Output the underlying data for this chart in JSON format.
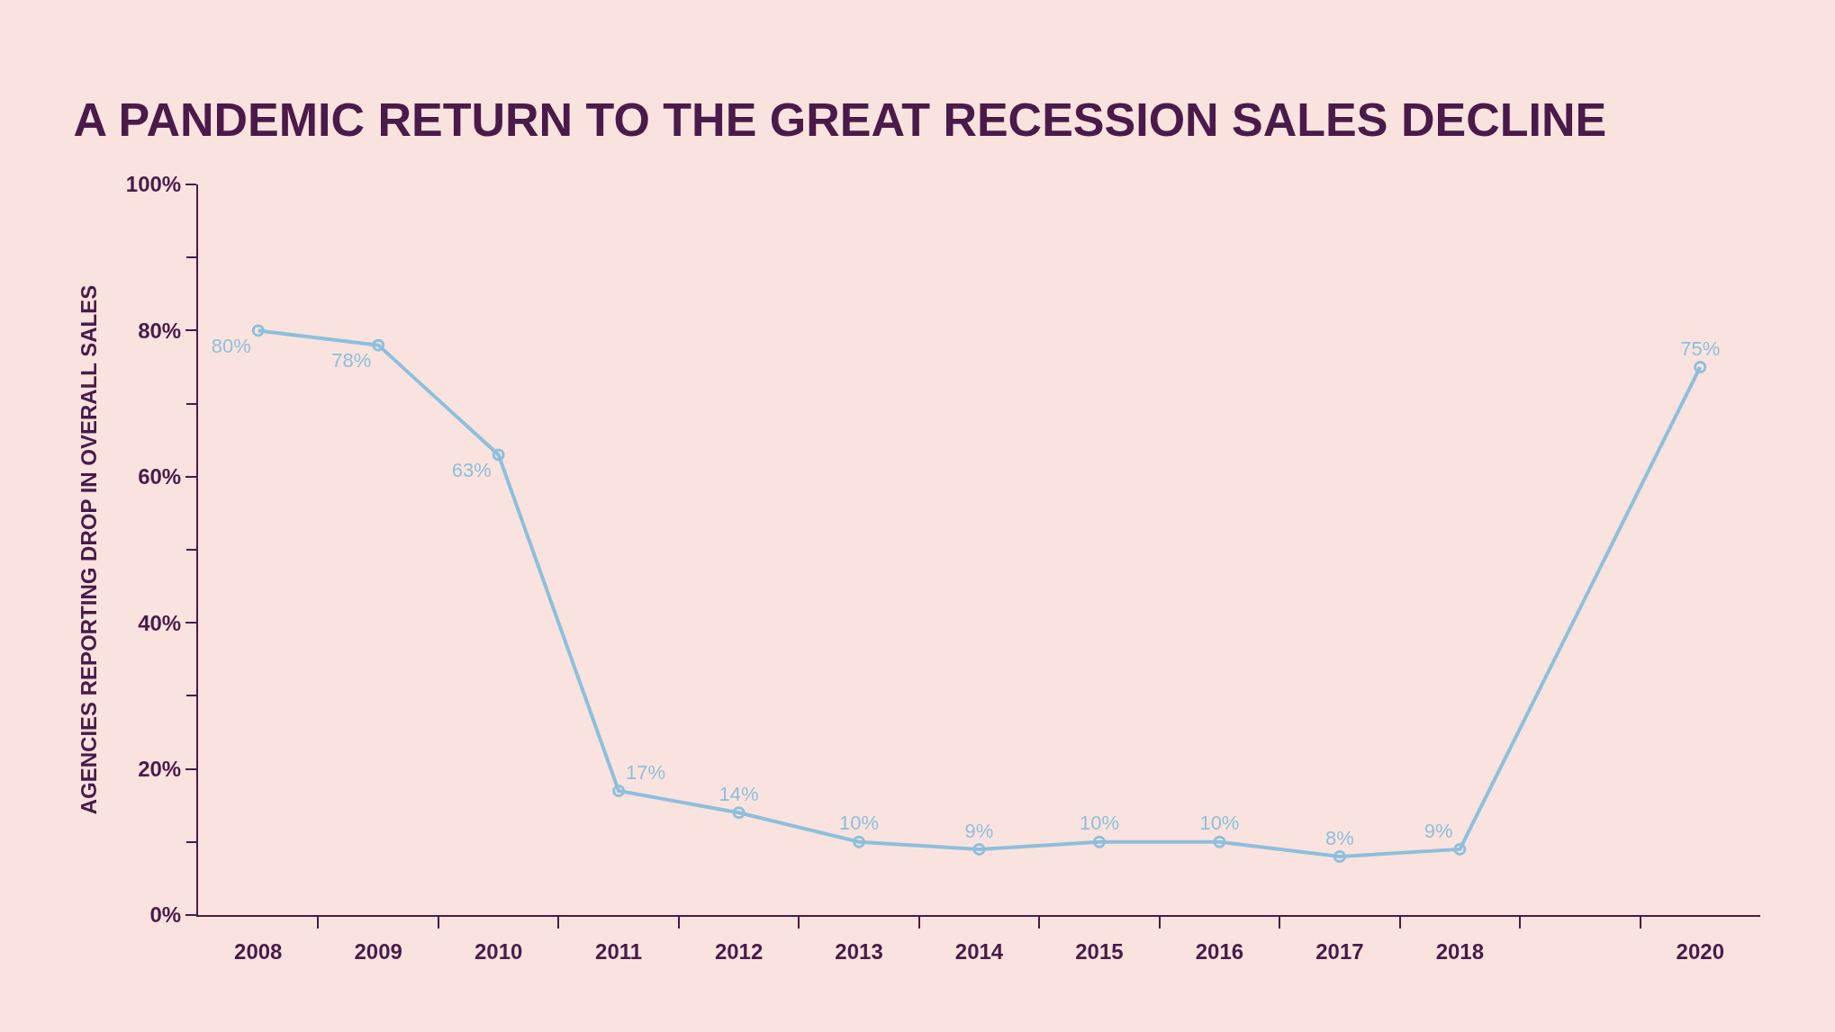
{
  "chart_data": {
    "type": "line",
    "title": "A PANDEMIC RETURN TO THE GREAT RECESSION SALES DECLINE",
    "ylabel": "AGENCIES REPORTING DROP IN OVERALL SALES",
    "x": [
      2008,
      2009,
      2010,
      2011,
      2012,
      2013,
      2014,
      2015,
      2016,
      2017,
      2018,
      2020
    ],
    "values": [
      80,
      78,
      63,
      17,
      14,
      10,
      9,
      10,
      10,
      8,
      9,
      75
    ],
    "value_labels": [
      "80%",
      "78%",
      "63%",
      "17%",
      "14%",
      "10%",
      "9%",
      "10%",
      "10%",
      "8%",
      "9%",
      "75%"
    ],
    "color": "#8dbfdc",
    "marker": "circle",
    "line_style": "solid",
    "xlim": [
      2007.5,
      2020.5
    ],
    "xticks": [
      {
        "value": 2008,
        "label": "2008"
      },
      {
        "value": 2009,
        "label": "2009"
      },
      {
        "value": 2010,
        "label": "2010"
      },
      {
        "value": 2011,
        "label": "2011"
      },
      {
        "value": 2012,
        "label": "2012"
      },
      {
        "value": 2013,
        "label": "2013"
      },
      {
        "value": 2014,
        "label": "2014"
      },
      {
        "value": 2015,
        "label": "2015"
      },
      {
        "value": 2016,
        "label": "2016"
      },
      {
        "value": 2017,
        "label": "2017"
      },
      {
        "value": 2018,
        "label": "2018"
      },
      {
        "value": 2020,
        "label": "2020"
      },
      {
        "value": 2008.5,
        "label": null
      },
      {
        "value": 2009.5,
        "label": null
      },
      {
        "value": 2010.5,
        "label": null
      },
      {
        "value": 2011.5,
        "label": null
      },
      {
        "value": 2012.5,
        "label": null
      },
      {
        "value": 2013.5,
        "label": null
      },
      {
        "value": 2014.5,
        "label": null
      },
      {
        "value": 2015.5,
        "label": null
      },
      {
        "value": 2016.5,
        "label": null
      },
      {
        "value": 2017.5,
        "label": null
      },
      {
        "value": 2018.5,
        "label": null
      },
      {
        "value": 2019.5,
        "label": null
      }
    ],
    "ylim": [
      0,
      100
    ],
    "yticks": [
      {
        "value": 0,
        "label": "0%"
      },
      {
        "value": 10,
        "label": null
      },
      {
        "value": 20,
        "label": "20%"
      },
      {
        "value": 30,
        "label": null
      },
      {
        "value": 40,
        "label": "40%"
      },
      {
        "value": 50,
        "label": null
      },
      {
        "value": 60,
        "label": "60%"
      },
      {
        "value": 70,
        "label": null
      },
      {
        "value": 80,
        "label": "80%"
      },
      {
        "value": 90,
        "label": null
      },
      {
        "value": 100,
        "label": "100%"
      }
    ]
  }
}
